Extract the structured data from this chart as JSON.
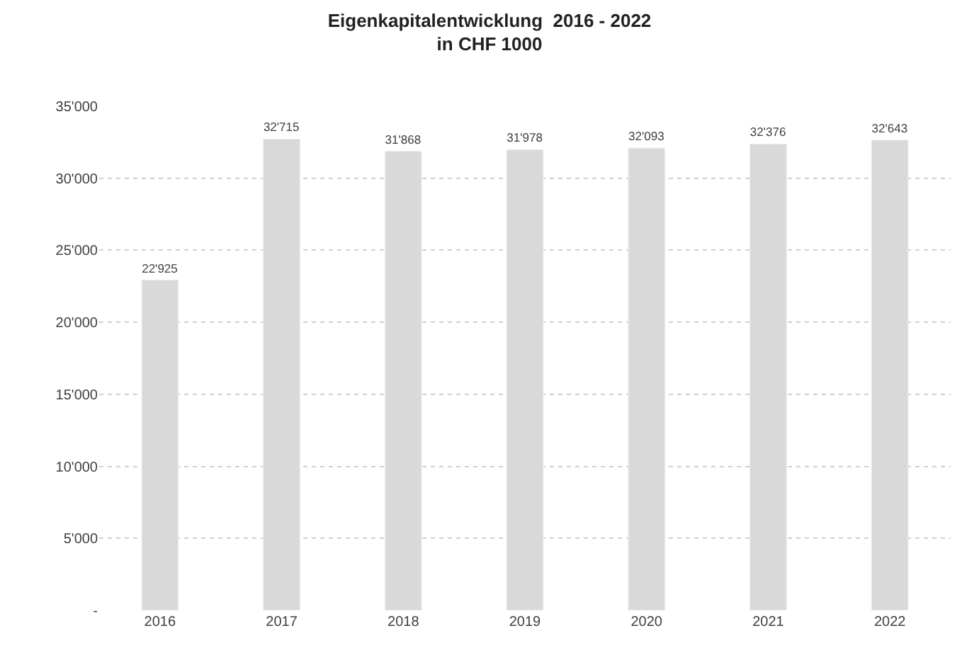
{
  "chart_data": {
    "type": "bar",
    "title": "Eigenkapitalentwicklung  2016 - 2022",
    "subtitle": "in CHF 1000",
    "categories": [
      "2016",
      "2017",
      "2018",
      "2019",
      "2020",
      "2021",
      "2022"
    ],
    "values": [
      22925,
      32715,
      31868,
      31978,
      32093,
      32376,
      32643
    ],
    "value_labels": [
      "22'925",
      "32'715",
      "31'868",
      "31'978",
      "32'093",
      "32'376",
      "32'643"
    ],
    "color": "#d9d9d9",
    "ylim": [
      0,
      35000
    ],
    "yticks": [
      {
        "value": 0,
        "label": "-"
      },
      {
        "value": 5000,
        "label": "5'000"
      },
      {
        "value": 10000,
        "label": "10'000"
      },
      {
        "value": 15000,
        "label": "15'000"
      },
      {
        "value": 20000,
        "label": "20'000"
      },
      {
        "value": 25000,
        "label": "25'000"
      },
      {
        "value": 30000,
        "label": "30'000"
      },
      {
        "value": 35000,
        "label": "35'000"
      }
    ],
    "grid": "y"
  }
}
